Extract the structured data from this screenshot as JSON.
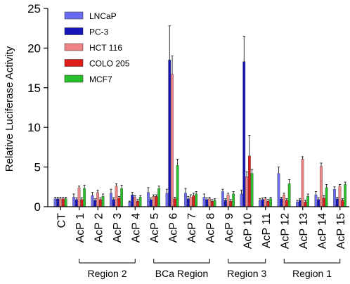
{
  "chart_data": {
    "type": "bar",
    "ylabel": "Relative Luciferase Activity",
    "ylim": [
      0,
      25
    ],
    "yticks": [
      0,
      5,
      10,
      15,
      20,
      25
    ],
    "categories": [
      "CT",
      "AcP 1",
      "AcP 2",
      "AcP 3",
      "AcP 4",
      "AcP 5",
      "AcP 6",
      "AcP 7",
      "AcP 8",
      "AcP 9",
      "AcP 10",
      "AcP 11",
      "AcP 12",
      "AcP 13",
      "AcP 14",
      "AcP 15"
    ],
    "legend_position": "top-left",
    "series": [
      {
        "name": "LNCaP",
        "color": "#6b6bef",
        "values": [
          1.0,
          1.2,
          1.4,
          1.7,
          0.6,
          1.8,
          1.7,
          1.7,
          1.2,
          1.9,
          1.6,
          0.8,
          4.2,
          0.6,
          1.5,
          2.2
        ],
        "errors": [
          0.2,
          0.4,
          0.4,
          0.5,
          0.1,
          0.6,
          0.5,
          0.6,
          0.4,
          0.3,
          0.5,
          0.2,
          0.8,
          0.2,
          0.4,
          0.3
        ]
      },
      {
        "name": "PC-3",
        "color": "#1515b8",
        "values": [
          1.0,
          0.9,
          0.8,
          0.9,
          1.5,
          0.9,
          18.5,
          1.0,
          0.9,
          0.8,
          18.3,
          0.9,
          1.0,
          0.8,
          0.9,
          1.0
        ],
        "errors": [
          0.2,
          0.2,
          0.2,
          0.2,
          0.3,
          0.2,
          4.3,
          0.3,
          0.2,
          0.2,
          3.2,
          0.2,
          0.2,
          0.2,
          0.2,
          0.2
        ]
      },
      {
        "name": "HCT 116",
        "color": "#ef8484",
        "values": [
          1.0,
          2.4,
          1.8,
          2.6,
          1.2,
          1.3,
          16.7,
          1.2,
          1.0,
          1.5,
          3.8,
          1.0,
          1.5,
          6.0,
          5.1,
          2.6
        ],
        "errors": [
          0.2,
          0.2,
          0.3,
          0.3,
          0.2,
          0.2,
          2.3,
          0.3,
          0.2,
          0.2,
          0.6,
          0.2,
          0.2,
          0.3,
          0.4,
          0.2
        ]
      },
      {
        "name": "COLO 205",
        "color": "#e01c1c",
        "values": [
          1.0,
          0.9,
          0.9,
          1.1,
          0.7,
          1.3,
          1.0,
          1.4,
          0.7,
          0.7,
          6.4,
          0.7,
          0.8,
          0.6,
          1.1,
          0.8
        ],
        "errors": [
          0.2,
          0.2,
          0.2,
          0.2,
          0.2,
          0.2,
          0.2,
          0.3,
          0.2,
          0.2,
          2.6,
          0.2,
          0.2,
          0.2,
          0.3,
          0.2
        ]
      },
      {
        "name": "MCF7",
        "color": "#2bbf2b",
        "values": [
          1.0,
          2.3,
          1.3,
          2.3,
          1.2,
          2.3,
          5.2,
          1.6,
          0.8,
          1.6,
          4.2,
          1.0,
          2.9,
          1.3,
          2.4,
          2.8
        ],
        "errors": [
          0.2,
          0.4,
          0.3,
          0.4,
          0.2,
          0.3,
          0.8,
          0.3,
          0.2,
          0.3,
          0.5,
          0.2,
          0.5,
          0.3,
          0.4,
          0.3
        ]
      }
    ],
    "groups": [
      {
        "label": "Region 2",
        "start": 1,
        "end": 4
      },
      {
        "label": "BCa Region",
        "start": 5,
        "end": 8
      },
      {
        "label": "Region 3",
        "start": 9,
        "end": 11
      },
      {
        "label": "Region 1",
        "start": 12,
        "end": 15
      }
    ]
  }
}
